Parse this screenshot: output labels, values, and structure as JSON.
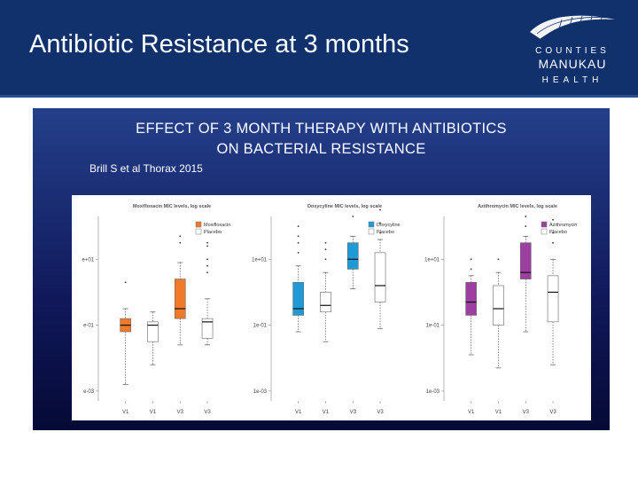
{
  "slide": {
    "title": "Antibiotic Resistance at 3 months"
  },
  "logo": {
    "line1": "COUNTIES",
    "line2": "MANUKAU",
    "line3": "HEALTH"
  },
  "panel": {
    "title_line1": "EFFECT OF 3 MONTH THERAPY WITH ANTIBIOTICS",
    "title_line2": "ON BACTERIAL RESISTANCE",
    "citation": "Brill S et al Thorax 2015"
  },
  "chart_data": [
    {
      "type": "box",
      "title": "Moxifloxacin MIC levels, log scale",
      "y_scale": "log10",
      "y_ticks": [
        "e+01",
        "e-01",
        "e-03"
      ],
      "y_tick_values": [
        1,
        -1,
        -3
      ],
      "ylim": [
        -3.3,
        2.3
      ],
      "legend": [
        {
          "name": "Moxifloxacin",
          "color": "#f0792a"
        },
        {
          "name": "Placebo",
          "color": "#ffffff"
        }
      ],
      "categories": [
        "V1",
        "V1",
        "V3",
        "V3"
      ],
      "boxes": [
        {
          "group": "Moxifloxacin",
          "q1": -1.2,
          "median": -1.0,
          "q3": -0.8,
          "wlow": -2.8,
          "whigh": -0.5,
          "outliers": [
            0.3
          ]
        },
        {
          "group": "Placebo",
          "q1": -1.5,
          "median": -1.0,
          "q3": -0.9,
          "wlow": -2.2,
          "whigh": -0.6,
          "outliers": []
        },
        {
          "group": "Moxifloxacin",
          "q1": -0.8,
          "median": -0.5,
          "q3": 0.4,
          "wlow": -1.6,
          "whigh": 0.9,
          "outliers": [
            1.5,
            1.7
          ]
        },
        {
          "group": "Placebo",
          "q1": -1.4,
          "median": -0.9,
          "q3": -0.8,
          "wlow": -1.6,
          "whigh": -0.2,
          "outliers": [
            0.6,
            0.8,
            1.0,
            1.4,
            1.5
          ]
        }
      ]
    },
    {
      "type": "box",
      "title": "Doxycyline MIC levels, log scale",
      "y_scale": "log10",
      "y_ticks": [
        "1e+01",
        "1e-01",
        "1e-03"
      ],
      "y_tick_values": [
        1,
        -1,
        -3
      ],
      "ylim": [
        -3.3,
        2.3
      ],
      "legend": [
        {
          "name": "Doxycyline",
          "color": "#1f9ad6"
        },
        {
          "name": "Placebo",
          "color": "#ffffff"
        }
      ],
      "categories": [
        "V1",
        "V1",
        "V3",
        "V3"
      ],
      "boxes": [
        {
          "group": "Doxycyline",
          "q1": -0.7,
          "median": -0.5,
          "q3": 0.3,
          "wlow": -1.2,
          "whigh": 0.8,
          "outliers": [
            1.2,
            1.5,
            1.7,
            2.0
          ]
        },
        {
          "group": "Placebo",
          "q1": -0.6,
          "median": -0.4,
          "q3": 0.0,
          "wlow": -1.5,
          "whigh": 0.6,
          "outliers": [
            1.0,
            1.3,
            1.5
          ]
        },
        {
          "group": "Doxycyline",
          "q1": 0.7,
          "median": 1.0,
          "q3": 1.5,
          "wlow": 0.1,
          "whigh": 1.7,
          "outliers": [
            2.3
          ]
        },
        {
          "group": "Placebo",
          "q1": -0.3,
          "median": 0.2,
          "q3": 1.2,
          "wlow": -1.1,
          "whigh": 1.6,
          "outliers": [
            1.8,
            2.1,
            2.5
          ]
        }
      ]
    },
    {
      "type": "box",
      "title": "Azithromycin MIC levels, log scale",
      "y_scale": "log10",
      "y_ticks": [
        "1e+01",
        "1e-01",
        "1e-03"
      ],
      "y_tick_values": [
        1,
        -1,
        -3
      ],
      "ylim": [
        -3.3,
        2.3
      ],
      "legend": [
        {
          "name": "Azithromycin",
          "color": "#9c3fa0"
        },
        {
          "name": "Placebo",
          "color": "#ffffff"
        }
      ],
      "categories": [
        "V1",
        "V1",
        "V3",
        "V3"
      ],
      "boxes": [
        {
          "group": "Azithromycin",
          "q1": -0.7,
          "median": -0.3,
          "q3": 0.3,
          "wlow": -1.9,
          "whigh": 0.5,
          "outliers": [
            0.7,
            1.0
          ]
        },
        {
          "group": "Placebo",
          "q1": -1.0,
          "median": -0.5,
          "q3": 0.2,
          "wlow": -2.3,
          "whigh": 0.6,
          "outliers": [
            1.0
          ]
        },
        {
          "group": "Azithromycin",
          "q1": 0.4,
          "median": 0.6,
          "q3": 1.5,
          "wlow": -1.2,
          "whigh": 1.7,
          "outliers": [
            2.0,
            2.3
          ]
        },
        {
          "group": "Placebo",
          "q1": -0.9,
          "median": 0.0,
          "q3": 0.5,
          "wlow": -2.2,
          "whigh": 1.0,
          "outliers": [
            1.5,
            1.8,
            2.2
          ]
        }
      ]
    }
  ]
}
